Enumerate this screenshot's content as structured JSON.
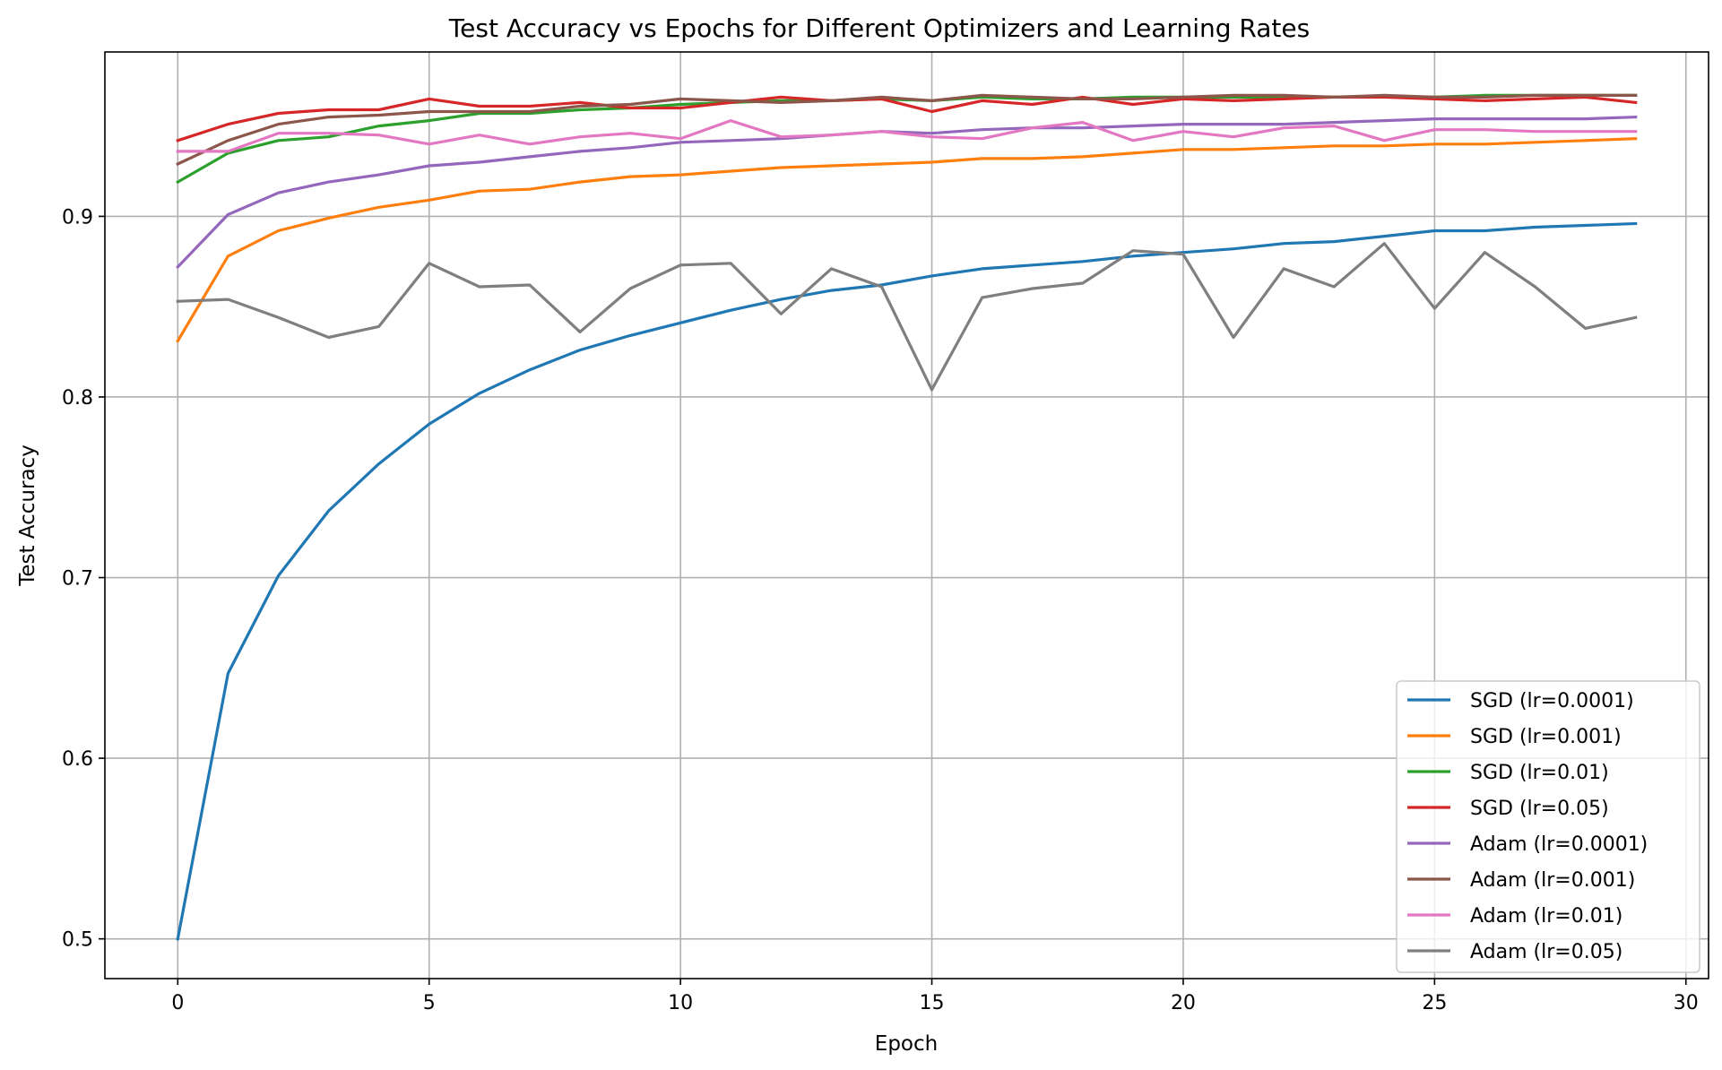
{
  "chart_data": {
    "type": "line",
    "title": "Test Accuracy vs Epochs for Different Optimizers and Learning Rates",
    "xlabel": "Epoch",
    "ylabel": "Test Accuracy",
    "xlim": [
      -1.45,
      30.45
    ],
    "ylim": [
      0.478,
      0.991
    ],
    "xticks": [
      0,
      5,
      10,
      15,
      20,
      25,
      30
    ],
    "xtick_labels": [
      "0",
      "5",
      "10",
      "15",
      "20",
      "25",
      "30"
    ],
    "yticks": [
      0.5,
      0.6,
      0.7,
      0.8,
      0.9
    ],
    "ytick_labels": [
      "0.5",
      "0.6",
      "0.7",
      "0.8",
      "0.9"
    ],
    "grid": true,
    "legend_position": "lower right",
    "x": [
      0,
      1,
      2,
      3,
      4,
      5,
      6,
      7,
      8,
      9,
      10,
      11,
      12,
      13,
      14,
      15,
      16,
      17,
      18,
      19,
      20,
      21,
      22,
      23,
      24,
      25,
      26,
      27,
      28,
      29
    ],
    "series": [
      {
        "name": "SGD (lr=0.0001)",
        "color": "#1f77b4",
        "values": [
          0.5,
          0.647,
          0.701,
          0.737,
          0.763,
          0.785,
          0.802,
          0.815,
          0.826,
          0.834,
          0.841,
          0.848,
          0.854,
          0.859,
          0.862,
          0.867,
          0.871,
          0.873,
          0.875,
          0.878,
          0.88,
          0.882,
          0.885,
          0.886,
          0.889,
          0.892,
          0.892,
          0.894,
          0.895,
          0.896
        ]
      },
      {
        "name": "SGD (lr=0.001)",
        "color": "#ff7f0e",
        "values": [
          0.831,
          0.878,
          0.892,
          0.899,
          0.905,
          0.909,
          0.914,
          0.915,
          0.919,
          0.922,
          0.923,
          0.925,
          0.927,
          0.928,
          0.929,
          0.93,
          0.932,
          0.932,
          0.933,
          0.935,
          0.937,
          0.937,
          0.938,
          0.939,
          0.939,
          0.94,
          0.94,
          0.941,
          0.942,
          0.943
        ]
      },
      {
        "name": "SGD (lr=0.01)",
        "color": "#2ca02c",
        "values": [
          0.919,
          0.935,
          0.942,
          0.944,
          0.95,
          0.953,
          0.957,
          0.957,
          0.959,
          0.96,
          0.962,
          0.963,
          0.964,
          0.964,
          0.965,
          0.964,
          0.966,
          0.965,
          0.965,
          0.966,
          0.966,
          0.966,
          0.966,
          0.966,
          0.966,
          0.966,
          0.967,
          0.967,
          0.967,
          0.967
        ]
      },
      {
        "name": "SGD (lr=0.05)",
        "color": "#d62728",
        "values": [
          0.942,
          0.951,
          0.957,
          0.959,
          0.959,
          0.965,
          0.961,
          0.961,
          0.963,
          0.96,
          0.96,
          0.963,
          0.966,
          0.964,
          0.965,
          0.958,
          0.964,
          0.962,
          0.966,
          0.962,
          0.965,
          0.964,
          0.965,
          0.966,
          0.966,
          0.965,
          0.964,
          0.965,
          0.966,
          0.963
        ]
      },
      {
        "name": "Adam (lr=0.0001)",
        "color": "#9467bd",
        "values": [
          0.872,
          0.901,
          0.913,
          0.919,
          0.923,
          0.928,
          0.93,
          0.933,
          0.936,
          0.938,
          0.941,
          0.942,
          0.943,
          0.945,
          0.947,
          0.946,
          0.948,
          0.949,
          0.949,
          0.95,
          0.951,
          0.951,
          0.951,
          0.952,
          0.953,
          0.954,
          0.954,
          0.954,
          0.954,
          0.955
        ]
      },
      {
        "name": "Adam (lr=0.001)",
        "color": "#8c564b",
        "values": [
          0.929,
          0.942,
          0.951,
          0.955,
          0.956,
          0.958,
          0.958,
          0.958,
          0.961,
          0.962,
          0.965,
          0.964,
          0.963,
          0.964,
          0.966,
          0.964,
          0.967,
          0.966,
          0.965,
          0.965,
          0.966,
          0.967,
          0.967,
          0.966,
          0.967,
          0.966,
          0.966,
          0.967,
          0.967,
          0.967
        ]
      },
      {
        "name": "Adam (lr=0.01)",
        "color": "#e377c2",
        "values": [
          0.936,
          0.936,
          0.946,
          0.946,
          0.945,
          0.94,
          0.945,
          0.94,
          0.944,
          0.946,
          0.943,
          0.953,
          0.944,
          0.945,
          0.947,
          0.944,
          0.943,
          0.949,
          0.952,
          0.942,
          0.947,
          0.944,
          0.949,
          0.95,
          0.942,
          0.948,
          0.948,
          0.947,
          0.947,
          0.947
        ]
      },
      {
        "name": "Adam (lr=0.05)",
        "color": "#7f7f7f",
        "values": [
          0.853,
          0.854,
          0.844,
          0.833,
          0.839,
          0.874,
          0.861,
          0.862,
          0.836,
          0.86,
          0.873,
          0.874,
          0.846,
          0.871,
          0.861,
          0.804,
          0.855,
          0.86,
          0.863,
          0.881,
          0.879,
          0.833,
          0.871,
          0.861,
          0.885,
          0.849,
          0.88,
          0.861,
          0.838,
          0.844
        ]
      }
    ]
  }
}
